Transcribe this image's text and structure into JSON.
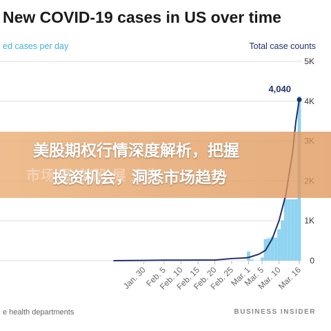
{
  "title": "New COVID-19 cases in US over time",
  "legend_left": "ed cases per day",
  "legend_right": "Total case counts",
  "source": "e health departments",
  "publisher": "BUSINESS INSIDER",
  "banner": {
    "line1": "美股期权行情深度解析，把握",
    "line2": "投资机会，洞悉市场趋势",
    "watermark": "市场 最 美股 展 资先"
  },
  "colors": {
    "bars": "#8fd3f0",
    "line": "#1f2f6b",
    "grid": "#dddddd",
    "banner": "#e6a26a"
  },
  "chart_data": {
    "type": "bar",
    "title": "New COVID-19 cases in US over time",
    "x_tick_labels": [
      "Jan. 30",
      "Feb. 5",
      "Feb. 10",
      "Feb. 15",
      "Feb. 20",
      "Feb. 25",
      "Mar. 1",
      "Mar. 5",
      "Mar. 10",
      "Mar. 16"
    ],
    "y_right_ticks": [
      "0",
      "1K",
      "2K",
      "3K",
      "4K",
      "5K"
    ],
    "ylim": [
      0,
      5000
    ],
    "annotation": {
      "label": "4,040",
      "value": 4040,
      "date": "Mar. 16"
    },
    "series": [
      {
        "name": "cases per day",
        "type": "bar",
        "x": [
          "Mar. 1",
          "Mar. 2",
          "Mar. 5",
          "Mar. 6",
          "Mar. 7",
          "Mar. 8",
          "Mar. 9",
          "Mar. 10",
          "Mar. 11",
          "Mar. 12",
          "Mar. 13",
          "Mar. 14",
          "Mar. 15",
          "Mar. 16"
        ],
        "values": [
          230,
          30,
          80,
          540,
          560,
          600,
          580,
          790,
          1010,
          1540,
          1540,
          1540,
          1540,
          4120
        ]
      },
      {
        "name": "Total case counts",
        "type": "line",
        "x": [
          "Jan. 21",
          "Jan. 30",
          "Feb. 5",
          "Feb. 10",
          "Feb. 15",
          "Feb. 20",
          "Feb. 25",
          "Feb. 29",
          "Mar. 1",
          "Mar. 4",
          "Mar. 6",
          "Mar. 8",
          "Mar. 10",
          "Mar. 12",
          "Mar. 14",
          "Mar. 15",
          "Mar. 16"
        ],
        "values": [
          0,
          6,
          12,
          12,
          15,
          16,
          53,
          70,
          80,
          160,
          260,
          550,
          1000,
          1650,
          2700,
          3500,
          4040
        ]
      }
    ]
  }
}
